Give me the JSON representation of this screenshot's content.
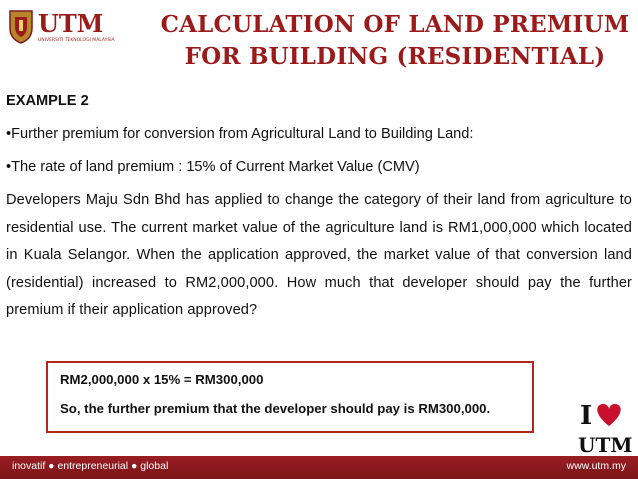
{
  "header": {
    "logo_text": "UTM",
    "logo_subtext": "UNIVERSITI TEKNOLOGI MALAYSIA",
    "title_line1": "CALCULATION OF LAND PREMIUM",
    "title_line2": "FOR BUILDING (RESIDENTIAL)"
  },
  "content": {
    "example": "EXAMPLE 2",
    "bullets": [
      "•Further premium for conversion from Agricultural Land to Building Land:",
      "•The rate of land premium : 15% of Current Market Value (CMV)"
    ],
    "paragraph": "Developers Maju Sdn Bhd has applied to change the category of their land from agriculture to residential use. The current market value of the agriculture land is RM1,000,000 which located in Kuala Selangor. When the application approved, the market value of that conversion land (residential) increased to RM2,000,000. How much that developer should pay the further premium if their application approved?"
  },
  "answer": {
    "line1": "RM2,000,000 x 15% = RM300,000",
    "line2": "So, the further premium that the developer should pay is RM300,000."
  },
  "badge": {
    "text_i": "I",
    "text_utm": "UTM",
    "heart_icon": "heart-icon"
  },
  "footer": {
    "tagline": "inovatif ● entrepreneurial ● global",
    "url": "www.utm.my"
  },
  "colors": {
    "brand_red": "#9b1b1b",
    "box_border": "#b5261f",
    "footer_bg": "#8a1a1e"
  }
}
